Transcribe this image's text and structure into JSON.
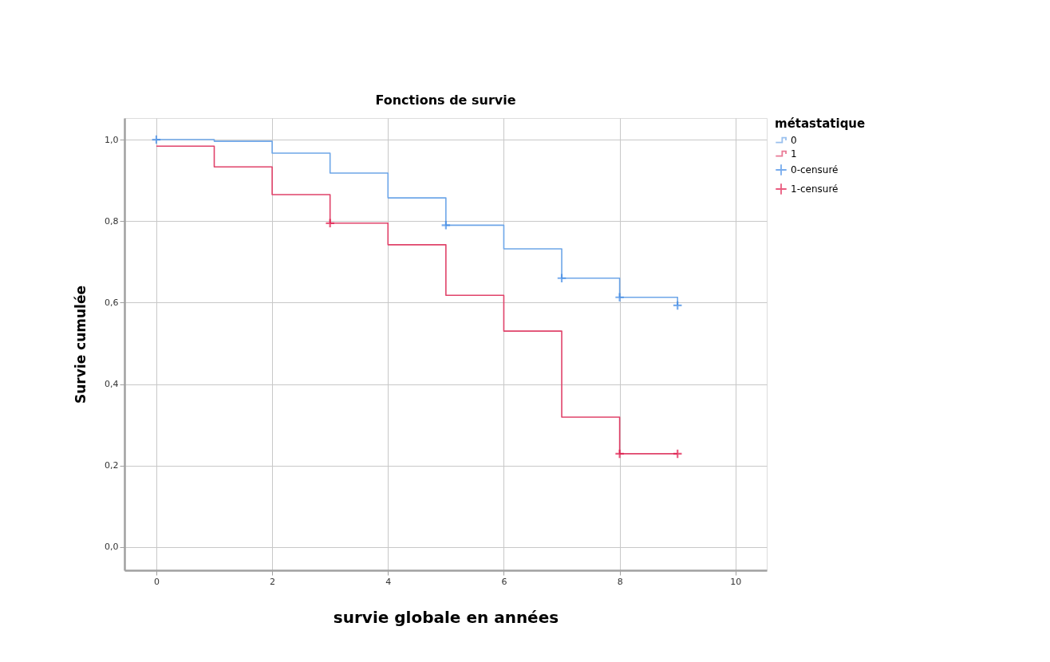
{
  "chart_data": {
    "type": "step",
    "title": "Fonctions de survie",
    "xlabel": "survie globale en années",
    "ylabel": "Survie cumulée",
    "legend_title": "métastatique",
    "xlim": [
      -0.55,
      10.54
    ],
    "ylim": [
      -0.057,
      1.053
    ],
    "xticks": [
      0,
      2,
      4,
      6,
      8,
      10
    ],
    "yticks": [
      {
        "value": 0,
        "label": "0,0"
      },
      {
        "value": 0.2,
        "label": "0,2"
      },
      {
        "value": 0.4,
        "label": "0,4"
      },
      {
        "value": 0.6,
        "label": "0,6"
      },
      {
        "value": 0.8,
        "label": "0,8"
      },
      {
        "value": 1.0,
        "label": "1,0"
      }
    ],
    "grid": true,
    "legend": "top right",
    "line_style": "solid",
    "series": [
      {
        "name": "0",
        "type": "step",
        "color": "#6ea6e8",
        "x": [
          0,
          1,
          2,
          3,
          4,
          5,
          6,
          7,
          8,
          9
        ],
        "values": [
          1.0,
          0.996,
          0.967,
          0.918,
          0.857,
          0.79,
          0.732,
          0.66,
          0.613,
          0.593
        ]
      },
      {
        "name": "1",
        "type": "step",
        "color": "#e0436a",
        "x": [
          0,
          1,
          2,
          3,
          4,
          5,
          6,
          7,
          8,
          9
        ],
        "values": [
          0.984,
          0.933,
          0.865,
          0.795,
          0.742,
          0.618,
          0.53,
          0.319,
          0.229,
          0.229
        ]
      },
      {
        "name": "0-censuré",
        "type": "scatter",
        "marker": "cross",
        "color": "#3f8ae6",
        "x": [
          0,
          5,
          7,
          8,
          9
        ],
        "values": [
          1.0,
          0.79,
          0.66,
          0.613,
          0.593
        ]
      },
      {
        "name": "1-censuré",
        "type": "scatter",
        "marker": "cross",
        "color": "#e0184a",
        "x": [
          3,
          8,
          9
        ],
        "values": [
          0.795,
          0.229,
          0.229
        ]
      }
    ]
  }
}
